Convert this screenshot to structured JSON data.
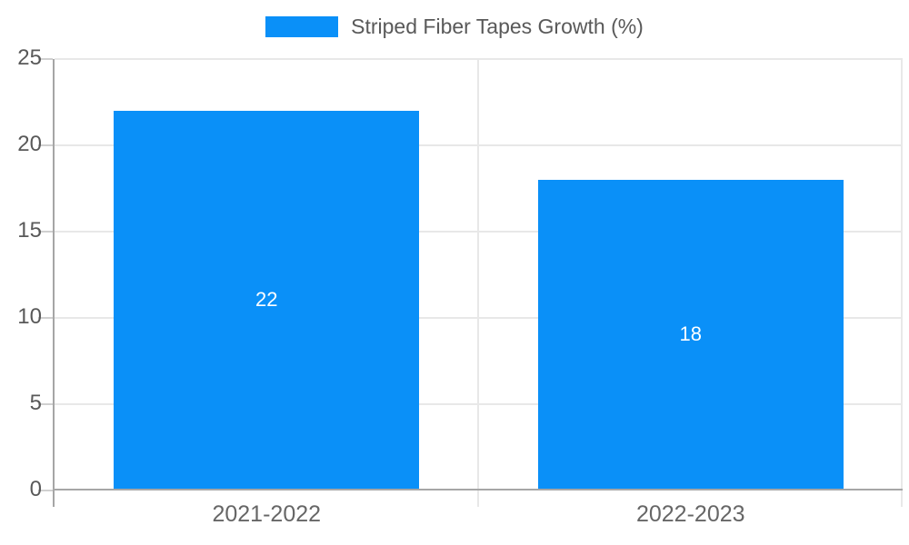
{
  "colors": {
    "background": "#ffffff",
    "bar": "#0a90f8",
    "grid": "#e8e8e8",
    "axis": "#a6a6a6",
    "tick": "#d0d0d0",
    "label_text": "#595959",
    "x_label_text": "#666666",
    "value_label_text": "#ffffff"
  },
  "chart_data": {
    "type": "bar",
    "legend_label": "Striped Fiber Tapes Growth (%)",
    "legend_position": "top-center",
    "categories": [
      "2021-2022",
      "2022-2023"
    ],
    "series": [
      {
        "name": "Striped Fiber Tapes Growth (%)",
        "color": "#0a90f8",
        "values": [
          22,
          18
        ]
      }
    ],
    "value_labels": [
      "22",
      "18"
    ],
    "ylim": [
      0,
      25
    ],
    "yticks": [
      0,
      5,
      10,
      15,
      20,
      25
    ],
    "grid": true
  }
}
